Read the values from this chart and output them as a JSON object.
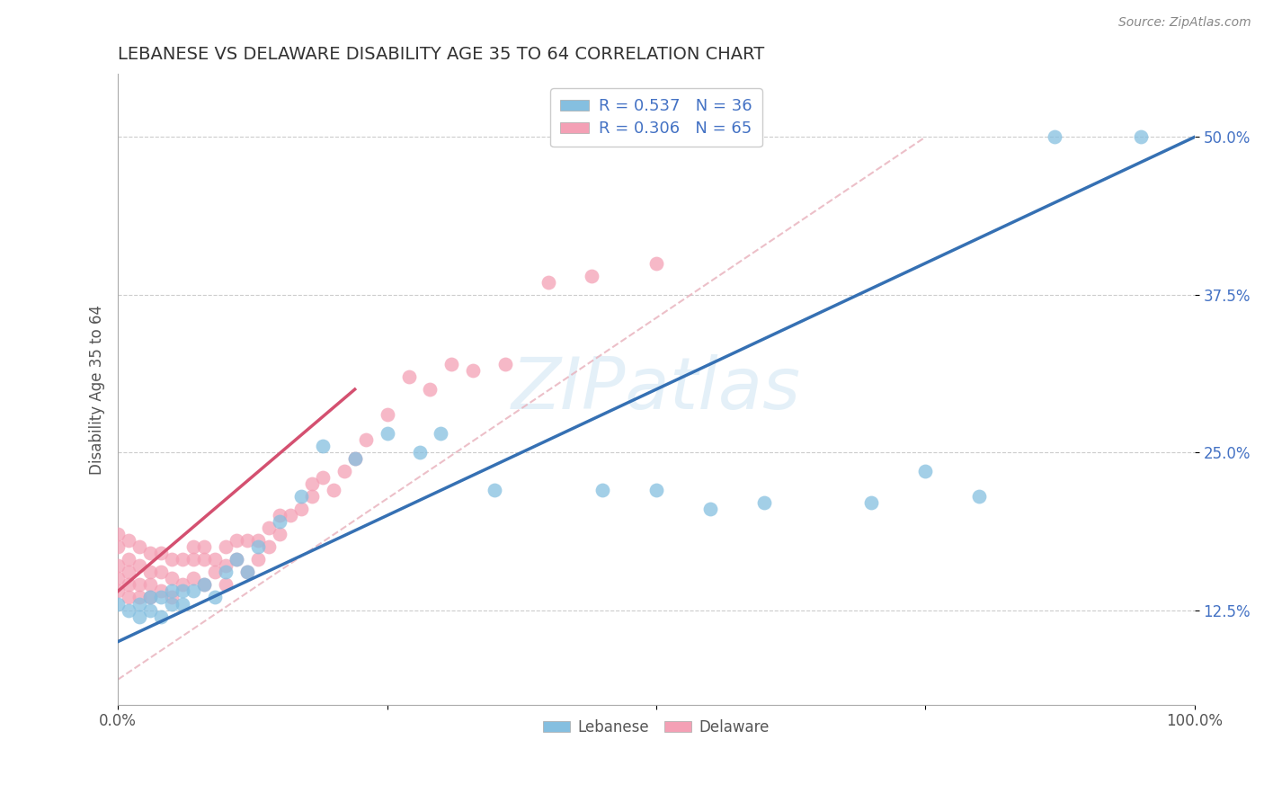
{
  "title": "LEBANESE VS DELAWARE DISABILITY AGE 35 TO 64 CORRELATION CHART",
  "source_text": "Source: ZipAtlas.com",
  "ylabel": "Disability Age 35 to 64",
  "xlim": [
    0.0,
    1.0
  ],
  "ylim": [
    0.05,
    0.55
  ],
  "xticks": [
    0.0,
    0.25,
    0.5,
    0.75,
    1.0
  ],
  "xtick_labels_ends": [
    "0.0%",
    "100.0%"
  ],
  "yticks": [
    0.125,
    0.25,
    0.375,
    0.5
  ],
  "ytick_labels": [
    "12.5%",
    "25.0%",
    "37.5%",
    "50.0%"
  ],
  "watermark": "ZIPatlas",
  "leb_legend": "R = 0.537   N = 36",
  "del_legend": "R = 0.306   N = 65",
  "lebanese_color": "#85bfe0",
  "delaware_color": "#f4a0b5",
  "lebanese_line_color": "#3570b3",
  "delaware_line_color": "#d45070",
  "ref_line_color": "#e8b0bb",
  "leb_x": [
    0.0,
    0.01,
    0.02,
    0.02,
    0.03,
    0.03,
    0.04,
    0.04,
    0.05,
    0.05,
    0.06,
    0.06,
    0.07,
    0.08,
    0.09,
    0.1,
    0.11,
    0.12,
    0.13,
    0.15,
    0.17,
    0.19,
    0.22,
    0.25,
    0.28,
    0.3,
    0.35,
    0.45,
    0.5,
    0.55,
    0.6,
    0.7,
    0.75,
    0.8,
    0.87,
    0.95
  ],
  "leb_y": [
    0.13,
    0.125,
    0.12,
    0.13,
    0.125,
    0.135,
    0.12,
    0.135,
    0.13,
    0.14,
    0.13,
    0.14,
    0.14,
    0.145,
    0.135,
    0.155,
    0.165,
    0.155,
    0.175,
    0.195,
    0.215,
    0.255,
    0.245,
    0.265,
    0.25,
    0.265,
    0.22,
    0.22,
    0.22,
    0.205,
    0.21,
    0.21,
    0.235,
    0.215,
    0.5,
    0.5
  ],
  "del_x": [
    0.0,
    0.0,
    0.0,
    0.0,
    0.0,
    0.01,
    0.01,
    0.01,
    0.01,
    0.01,
    0.02,
    0.02,
    0.02,
    0.02,
    0.03,
    0.03,
    0.03,
    0.03,
    0.04,
    0.04,
    0.04,
    0.05,
    0.05,
    0.05,
    0.06,
    0.06,
    0.07,
    0.07,
    0.07,
    0.08,
    0.08,
    0.08,
    0.09,
    0.09,
    0.1,
    0.1,
    0.1,
    0.11,
    0.11,
    0.12,
    0.12,
    0.13,
    0.13,
    0.14,
    0.14,
    0.15,
    0.15,
    0.16,
    0.17,
    0.18,
    0.18,
    0.19,
    0.2,
    0.21,
    0.22,
    0.23,
    0.25,
    0.27,
    0.29,
    0.31,
    0.33,
    0.36,
    0.4,
    0.44,
    0.5
  ],
  "del_y": [
    0.14,
    0.15,
    0.16,
    0.175,
    0.185,
    0.135,
    0.145,
    0.155,
    0.165,
    0.18,
    0.135,
    0.145,
    0.16,
    0.175,
    0.135,
    0.145,
    0.155,
    0.17,
    0.14,
    0.155,
    0.17,
    0.135,
    0.15,
    0.165,
    0.145,
    0.165,
    0.15,
    0.165,
    0.175,
    0.145,
    0.165,
    0.175,
    0.155,
    0.165,
    0.145,
    0.16,
    0.175,
    0.165,
    0.18,
    0.155,
    0.18,
    0.165,
    0.18,
    0.175,
    0.19,
    0.185,
    0.2,
    0.2,
    0.205,
    0.215,
    0.225,
    0.23,
    0.22,
    0.235,
    0.245,
    0.26,
    0.28,
    0.31,
    0.3,
    0.32,
    0.315,
    0.32,
    0.385,
    0.39,
    0.4
  ],
  "blue_line_x0": 0.0,
  "blue_line_y0": 0.1,
  "blue_line_x1": 1.0,
  "blue_line_y1": 0.5,
  "pink_line_x0": 0.0,
  "pink_line_y0": 0.14,
  "pink_line_x1": 0.22,
  "pink_line_y1": 0.3,
  "ref_line_x0": 0.0,
  "ref_line_y0": 0.07,
  "ref_line_x1": 0.75,
  "ref_line_y1": 0.5
}
